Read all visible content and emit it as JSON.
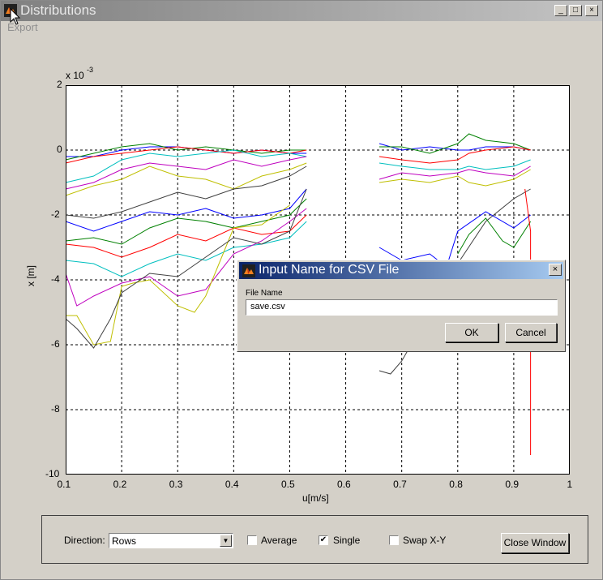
{
  "window": {
    "title": "Distributions",
    "menu_export": "Export",
    "min_glyph": "_",
    "max_glyph": "□",
    "close_glyph": "×"
  },
  "plot": {
    "exponent_base": "x 10",
    "exponent_power": "-3",
    "xlabel": "u[m/s]",
    "ylabel": "x [m]",
    "xticks": [
      "0.1",
      "0.2",
      "0.3",
      "0.4",
      "0.5",
      "0.6",
      "0.7",
      "0.8",
      "0.9",
      "1"
    ],
    "yticks": [
      "2",
      "0",
      "-2",
      "-4",
      "-6",
      "-8",
      "-10"
    ]
  },
  "chart_data": {
    "type": "line",
    "xlim": [
      0.1,
      1.0
    ],
    "ylim": [
      -10,
      2
    ],
    "grid": true,
    "xlabel": "u[m/s]",
    "ylabel": "x [m]",
    "colors": [
      "#0000ff",
      "#008000",
      "#ff0000",
      "#00bfbf",
      "#bf00bf",
      "#bfbf00",
      "#404040"
    ],
    "series": [
      {
        "x": [
          0.1,
          0.15,
          0.2,
          0.25,
          0.3,
          0.35,
          0.4,
          0.45,
          0.5,
          0.53
        ],
        "y": [
          -0.2,
          -0.2,
          0.0,
          0.1,
          0.1,
          0.0,
          -0.1,
          0.0,
          -0.1,
          -0.1
        ]
      },
      {
        "x": [
          0.1,
          0.15,
          0.2,
          0.25,
          0.3,
          0.35,
          0.4,
          0.45,
          0.5,
          0.53
        ],
        "y": [
          -0.3,
          -0.1,
          0.1,
          0.2,
          0.0,
          0.1,
          0.0,
          -0.1,
          0.0,
          0.0
        ]
      },
      {
        "x": [
          0.1,
          0.15,
          0.2,
          0.25,
          0.3,
          0.35,
          0.4,
          0.45,
          0.5,
          0.53
        ],
        "y": [
          -0.4,
          -0.2,
          -0.1,
          0.0,
          0.1,
          0.0,
          -0.1,
          0.0,
          -0.1,
          0.0
        ]
      },
      {
        "x": [
          0.1,
          0.15,
          0.2,
          0.25,
          0.3,
          0.35,
          0.4,
          0.45,
          0.5,
          0.53
        ],
        "y": [
          -1.0,
          -0.8,
          -0.3,
          -0.1,
          -0.2,
          -0.1,
          0.0,
          -0.2,
          -0.1,
          -0.2
        ]
      },
      {
        "x": [
          0.1,
          0.15,
          0.2,
          0.25,
          0.3,
          0.35,
          0.4,
          0.45,
          0.5,
          0.53
        ],
        "y": [
          -1.2,
          -1.0,
          -0.6,
          -0.4,
          -0.5,
          -0.6,
          -0.3,
          -0.5,
          -0.3,
          -0.2
        ]
      },
      {
        "x": [
          0.1,
          0.15,
          0.2,
          0.25,
          0.3,
          0.35,
          0.4,
          0.45,
          0.5,
          0.53
        ],
        "y": [
          -1.4,
          -1.1,
          -0.9,
          -0.5,
          -0.8,
          -0.9,
          -1.2,
          -0.8,
          -0.6,
          -0.4
        ]
      },
      {
        "x": [
          0.1,
          0.15,
          0.2,
          0.25,
          0.3,
          0.35,
          0.4,
          0.45,
          0.5,
          0.53
        ],
        "y": [
          -2.0,
          -2.1,
          -1.9,
          -1.6,
          -1.3,
          -1.5,
          -1.2,
          -1.1,
          -0.8,
          -0.5
        ]
      },
      {
        "x": [
          0.1,
          0.15,
          0.2,
          0.25,
          0.3,
          0.35,
          0.4,
          0.45,
          0.5,
          0.53
        ],
        "y": [
          -2.2,
          -2.5,
          -2.2,
          -1.9,
          -2.0,
          -1.8,
          -2.1,
          -2.0,
          -1.8,
          -1.2
        ]
      },
      {
        "x": [
          0.1,
          0.15,
          0.2,
          0.25,
          0.3,
          0.35,
          0.4,
          0.45,
          0.5,
          0.53
        ],
        "y": [
          -2.8,
          -2.7,
          -2.9,
          -2.4,
          -2.1,
          -2.2,
          -2.4,
          -2.2,
          -2.0,
          -1.5
        ]
      },
      {
        "x": [
          0.1,
          0.15,
          0.2,
          0.25,
          0.3,
          0.35,
          0.4,
          0.45,
          0.5,
          0.53
        ],
        "y": [
          -2.9,
          -3.0,
          -3.3,
          -3.0,
          -2.6,
          -2.8,
          -2.4,
          -2.6,
          -2.5,
          -2.0
        ]
      },
      {
        "x": [
          0.1,
          0.15,
          0.2,
          0.25,
          0.3,
          0.35,
          0.4,
          0.45,
          0.5,
          0.53
        ],
        "y": [
          -3.4,
          -3.5,
          -3.9,
          -3.5,
          -3.2,
          -3.4,
          -3.0,
          -2.9,
          -2.7,
          -2.2
        ]
      },
      {
        "x": [
          0.1,
          0.12,
          0.15,
          0.2,
          0.25,
          0.3,
          0.35,
          0.4,
          0.45,
          0.5,
          0.53
        ],
        "y": [
          -3.8,
          -4.8,
          -4.5,
          -4.1,
          -3.9,
          -4.5,
          -4.3,
          -3.2,
          -2.8,
          -2.2,
          -1.8
        ]
      },
      {
        "x": [
          0.1,
          0.12,
          0.15,
          0.18,
          0.2,
          0.22,
          0.25,
          0.3,
          0.33,
          0.35,
          0.4,
          0.45,
          0.5
        ],
        "y": [
          -5.1,
          -5.1,
          -6.0,
          -5.9,
          -4.2,
          -4.1,
          -4.0,
          -4.8,
          -5.0,
          -4.5,
          -2.4,
          -2.3,
          -1.7
        ]
      },
      {
        "x": [
          0.1,
          0.12,
          0.15,
          0.18,
          0.2,
          0.25,
          0.3,
          0.35,
          0.4,
          0.45,
          0.5,
          0.53
        ],
        "y": [
          -5.2,
          -5.5,
          -6.1,
          -5.2,
          -4.4,
          -3.8,
          -3.9,
          -3.3,
          -2.7,
          -2.9,
          -2.5,
          -1.2
        ]
      },
      {
        "x": [
          0.66,
          0.7,
          0.75,
          0.8,
          0.82,
          0.85,
          0.9,
          0.93
        ],
        "y": [
          0.2,
          0.0,
          0.1,
          0.0,
          0.0,
          0.1,
          0.1,
          0.0
        ]
      },
      {
        "x": [
          0.66,
          0.7,
          0.75,
          0.8,
          0.82,
          0.85,
          0.9,
          0.93
        ],
        "y": [
          0.1,
          0.1,
          -0.1,
          0.2,
          0.5,
          0.3,
          0.2,
          0.0
        ]
      },
      {
        "x": [
          0.66,
          0.7,
          0.75,
          0.8,
          0.82,
          0.85,
          0.9,
          0.93
        ],
        "y": [
          -0.2,
          -0.3,
          -0.4,
          -0.3,
          -0.1,
          0.0,
          0.1,
          0.0
        ]
      },
      {
        "x": [
          0.66,
          0.7,
          0.75,
          0.8,
          0.82,
          0.85,
          0.9,
          0.93
        ],
        "y": [
          -0.4,
          -0.5,
          -0.6,
          -0.6,
          -0.5,
          -0.6,
          -0.5,
          -0.3
        ]
      },
      {
        "x": [
          0.66,
          0.7,
          0.75,
          0.8,
          0.82,
          0.85,
          0.9,
          0.93
        ],
        "y": [
          -0.9,
          -0.7,
          -0.8,
          -0.7,
          -0.6,
          -0.7,
          -0.8,
          -0.5
        ]
      },
      {
        "x": [
          0.66,
          0.7,
          0.75,
          0.8,
          0.82,
          0.85,
          0.9,
          0.93
        ],
        "y": [
          -1.0,
          -0.9,
          -1.0,
          -0.8,
          -1.0,
          -1.1,
          -0.9,
          -0.6
        ]
      },
      {
        "x": [
          0.66,
          0.68,
          0.7,
          0.75,
          0.8,
          0.85,
          0.9,
          0.93
        ],
        "y": [
          -6.8,
          -6.9,
          -6.5,
          -5.0,
          -3.5,
          -2.2,
          -1.5,
          -1.2
        ]
      },
      {
        "x": [
          0.66,
          0.7,
          0.75,
          0.78,
          0.8,
          0.85,
          0.9,
          0.93
        ],
        "y": [
          -3.0,
          -3.4,
          -3.2,
          -3.6,
          -2.5,
          -1.9,
          -2.4,
          -2.0
        ]
      },
      {
        "x": [
          0.8,
          0.82,
          0.85,
          0.88,
          0.9,
          0.93
        ],
        "y": [
          -3.2,
          -2.6,
          -2.1,
          -2.8,
          -3.0,
          -2.2
        ]
      },
      {
        "x": [
          0.92,
          0.93,
          0.93,
          0.93
        ],
        "y": [
          -1.2,
          -2.5,
          -6.0,
          -9.4
        ]
      }
    ]
  },
  "dialog": {
    "title": "Input Name for CSV File",
    "field_label": "File Name",
    "field_value": "save.csv",
    "ok_label": "OK",
    "cancel_label": "Cancel",
    "close_glyph": "×"
  },
  "controls": {
    "direction_label": "Direction:",
    "direction_value": "Rows",
    "average_label": "Average",
    "average_checked": false,
    "single_label": "Single",
    "single_checked": true,
    "swap_label": "Swap X-Y",
    "swap_checked": false,
    "close_window_label": "Close Window",
    "check_glyph": "✔",
    "dropdown_glyph": "▼"
  }
}
